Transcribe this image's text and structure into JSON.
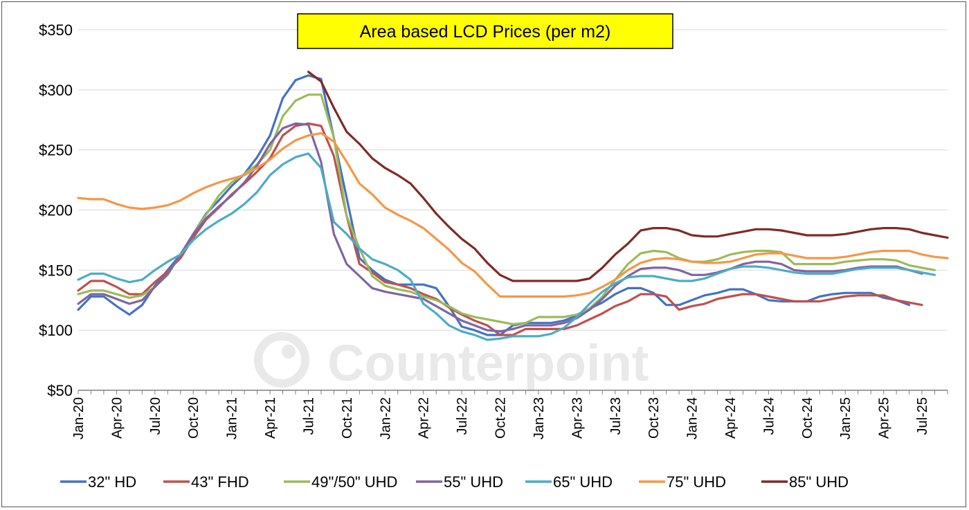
{
  "watermark": "Counterpoint",
  "chart_data": {
    "type": "line",
    "title": "Area based LCD Prices (per m2)",
    "xlabel": "",
    "ylabel": "",
    "ylim": [
      50,
      350
    ],
    "yticks": [
      50,
      100,
      150,
      200,
      250,
      300,
      350
    ],
    "ytick_labels": [
      "$50",
      "$100",
      "$150",
      "$200",
      "$250",
      "$300",
      "$350"
    ],
    "xtick_labels": [
      "Jan-20",
      "Apr-20",
      "Jul-20",
      "Oct-20",
      "Jan-21",
      "Apr-21",
      "Jul-21",
      "Oct-21",
      "Jan-22",
      "Apr-22",
      "Jul-22",
      "Oct-22",
      "Jan-23",
      "Apr-23",
      "Jul-23",
      "Oct-23",
      "Jan-24",
      "Apr-24",
      "Jul-24",
      "Oct-24",
      "Jan-25",
      "Apr-25",
      "Jul-25"
    ],
    "x_start": "Jan-20",
    "x_end": "Sep-25",
    "grid": true,
    "legend_position": "bottom",
    "series": [
      {
        "name": "32\" HD",
        "color": "#4472C4",
        "start": "Jan-20",
        "values": [
          117,
          128,
          128,
          120,
          113,
          121,
          137,
          150,
          163,
          180,
          197,
          208,
          220,
          230,
          244,
          262,
          293,
          308,
          312,
          309,
          260,
          210,
          160,
          150,
          142,
          138,
          138,
          138,
          135,
          120,
          103,
          100,
          96,
          96,
          104,
          106,
          106,
          106,
          108,
          112,
          118,
          123,
          130,
          135,
          135,
          131,
          121,
          121,
          125,
          129,
          131,
          134,
          134,
          130,
          125,
          124,
          124,
          124,
          128,
          130,
          131,
          131,
          131,
          127,
          125,
          121
        ]
      },
      {
        "name": "43\" FHD",
        "color": "#C0504D",
        "start": "Jan-20",
        "values": [
          133,
          141,
          141,
          136,
          130,
          130,
          140,
          149,
          160,
          177,
          192,
          202,
          213,
          222,
          232,
          243,
          262,
          270,
          272,
          270,
          245,
          195,
          155,
          148,
          140,
          138,
          135,
          130,
          126,
          119,
          113,
          108,
          104,
          96,
          96,
          101,
          101,
          101,
          101,
          104,
          109,
          114,
          120,
          124,
          130,
          130,
          128,
          117,
          120,
          122,
          126,
          128,
          130,
          130,
          128,
          126,
          124,
          124,
          124,
          126,
          128,
          129,
          129,
          129,
          125,
          123,
          121
        ]
      },
      {
        "name": "49\"/50\" UHD",
        "color": "#9BBB59",
        "start": "Jan-20",
        "values": [
          130,
          133,
          133,
          130,
          127,
          129,
          136,
          146,
          163,
          180,
          196,
          212,
          223,
          230,
          238,
          250,
          278,
          291,
          296,
          296,
          260,
          195,
          168,
          145,
          137,
          134,
          132,
          128,
          125,
          120,
          114,
          111,
          109,
          107,
          105,
          106,
          111,
          111,
          111,
          113,
          118,
          128,
          142,
          155,
          164,
          166,
          165,
          160,
          157,
          157,
          159,
          163,
          165,
          166,
          166,
          165,
          155,
          155,
          155,
          155,
          157,
          158,
          159,
          159,
          158,
          154,
          152,
          150
        ]
      },
      {
        "name": "55\" UHD",
        "color": "#8064A2",
        "start": "Jan-20",
        "values": [
          122,
          130,
          130,
          126,
          122,
          125,
          136,
          147,
          163,
          180,
          193,
          203,
          212,
          223,
          237,
          255,
          268,
          272,
          271,
          240,
          180,
          155,
          145,
          135,
          132,
          130,
          128,
          126,
          120,
          114,
          108,
          104,
          100,
          99,
          101,
          104,
          104,
          104,
          106,
          110,
          117,
          126,
          137,
          145,
          151,
          152,
          152,
          150,
          146,
          146,
          148,
          151,
          155,
          157,
          157,
          155,
          150,
          149,
          149,
          149,
          150,
          152,
          153,
          153,
          153,
          150,
          147
        ]
      },
      {
        "name": "65\" UHD",
        "color": "#4BACC6",
        "start": "Jan-20",
        "values": [
          142,
          147,
          147,
          143,
          140,
          142,
          150,
          157,
          163,
          175,
          184,
          191,
          197,
          205,
          215,
          229,
          238,
          244,
          247,
          235,
          190,
          180,
          168,
          159,
          155,
          150,
          142,
          122,
          114,
          104,
          99,
          96,
          92,
          93,
          95,
          95,
          95,
          97,
          102,
          111,
          122,
          132,
          139,
          144,
          145,
          145,
          143,
          141,
          141,
          143,
          147,
          151,
          153,
          153,
          152,
          150,
          148,
          147,
          147,
          147,
          149,
          151,
          152,
          152,
          152,
          150,
          148,
          146
        ]
      },
      {
        "name": "75\" UHD",
        "color": "#F79646",
        "start": "Jan-20",
        "values": [
          210,
          209,
          209,
          205,
          202,
          201,
          202,
          204,
          208,
          214,
          219,
          223,
          226,
          229,
          235,
          242,
          251,
          258,
          262,
          264,
          257,
          240,
          222,
          213,
          202,
          196,
          191,
          185,
          176,
          167,
          156,
          149,
          138,
          128,
          128,
          128,
          128,
          128,
          128,
          129,
          131,
          136,
          142,
          150,
          156,
          159,
          160,
          159,
          157,
          156,
          156,
          157,
          160,
          163,
          164,
          164,
          162,
          160,
          160,
          160,
          161,
          163,
          165,
          166,
          166,
          166,
          163,
          161,
          160
        ]
      },
      {
        "name": "85\" UHD",
        "color": "#7F2A26",
        "start": "Jul-21",
        "values": [
          315,
          307,
          285,
          265,
          255,
          243,
          235,
          229,
          222,
          210,
          197,
          186,
          176,
          168,
          156,
          146,
          141,
          141,
          141,
          141,
          141,
          141,
          143,
          152,
          163,
          172,
          183,
          185,
          185,
          183,
          179,
          178,
          178,
          180,
          182,
          184,
          184,
          183,
          181,
          179,
          179,
          179,
          180,
          182,
          184,
          185,
          185,
          184,
          181,
          179,
          177
        ]
      }
    ]
  }
}
